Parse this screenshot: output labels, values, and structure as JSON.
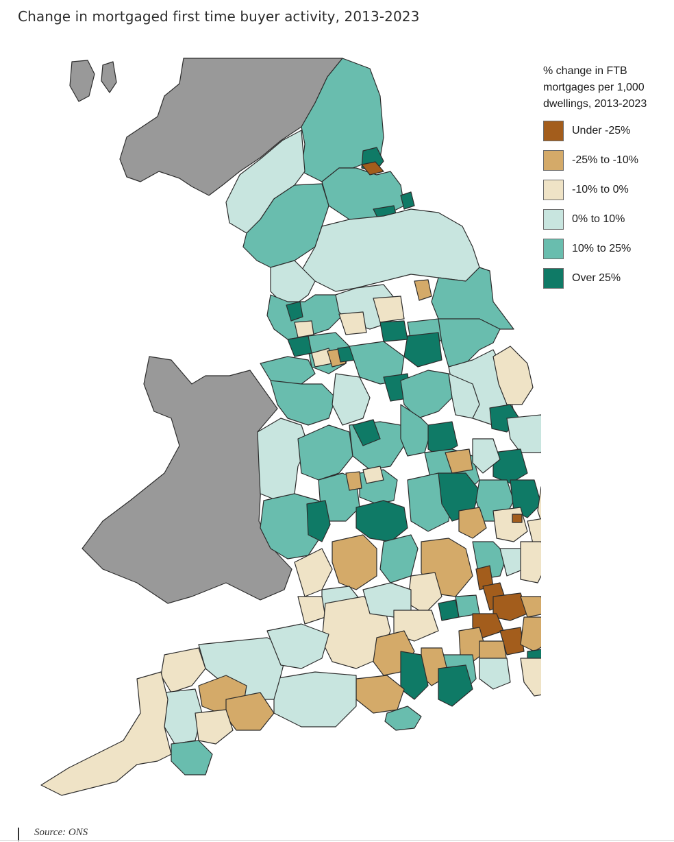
{
  "title": "Change in mortgaged first time buyer activity, 2013-2023",
  "legend": {
    "title_lines": [
      "% change in FTB",
      "mortgages per 1,000",
      "dwellings, 2013-2023"
    ],
    "items": [
      {
        "label": "Under -25%",
        "color": "#a35d1c"
      },
      {
        "label": "-25% to -10%",
        "color": "#d4aa69"
      },
      {
        "label": "-10% to 0%",
        "color": "#efe3c6"
      },
      {
        "label": "0% to 10%",
        "color": "#c8e5df"
      },
      {
        "label": "10% to 25%",
        "color": "#69bdae"
      },
      {
        "label": "Over 25%",
        "color": "#0f7a66"
      }
    ]
  },
  "neighbours_color": "#999999",
  "source": "Source: ONS"
}
